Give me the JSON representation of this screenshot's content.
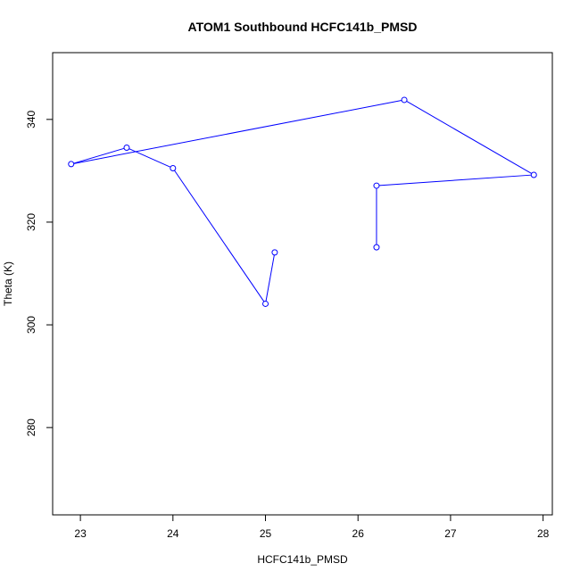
{
  "chart_data": {
    "type": "line",
    "title": "ATOM1 Southbound HCFC141b_PMSD",
    "xlabel": "HCFC141b_PMSD",
    "ylabel": "Theta (K)",
    "xlim": [
      22.7,
      28.1
    ],
    "ylim": [
      263,
      353
    ],
    "x_ticks": [
      23,
      24,
      25,
      26,
      27,
      28
    ],
    "y_ticks": [
      280,
      300,
      320,
      340
    ],
    "grid": false,
    "legend": "none",
    "series": [
      {
        "color": "#0000ff",
        "marker": "open-circle",
        "points": [
          {
            "x": 25.1,
            "y": 314.1
          },
          {
            "x": 25.0,
            "y": 304.1
          },
          {
            "x": 24.0,
            "y": 330.5
          },
          {
            "x": 23.5,
            "y": 334.5
          },
          {
            "x": 22.9,
            "y": 331.3
          },
          {
            "x": 26.5,
            "y": 343.8
          },
          {
            "x": 27.9,
            "y": 329.2
          },
          {
            "x": 26.2,
            "y": 327.1
          },
          {
            "x": 26.2,
            "y": 315.1
          }
        ]
      }
    ]
  }
}
